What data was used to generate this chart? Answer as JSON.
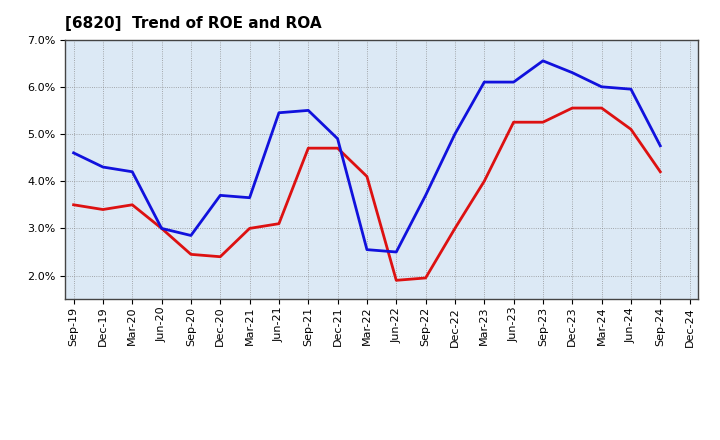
{
  "title": "[6820]  Trend of ROE and ROA",
  "labels": [
    "Sep-19",
    "Dec-19",
    "Mar-20",
    "Jun-20",
    "Sep-20",
    "Dec-20",
    "Mar-21",
    "Jun-21",
    "Sep-21",
    "Dec-21",
    "Mar-22",
    "Jun-22",
    "Sep-22",
    "Dec-22",
    "Mar-23",
    "Jun-23",
    "Sep-23",
    "Dec-23",
    "Mar-24",
    "Jun-24",
    "Sep-24",
    "Dec-24"
  ],
  "ROE": [
    3.5,
    3.4,
    3.5,
    3.0,
    2.45,
    2.4,
    3.0,
    3.1,
    4.7,
    4.7,
    4.1,
    1.9,
    1.95,
    3.0,
    4.0,
    5.25,
    5.25,
    5.55,
    5.55,
    5.1,
    4.2,
    null
  ],
  "ROA": [
    4.6,
    4.3,
    4.2,
    3.0,
    2.85,
    3.7,
    3.65,
    5.45,
    5.5,
    4.9,
    2.55,
    2.5,
    3.7,
    5.0,
    6.1,
    6.1,
    6.55,
    6.3,
    6.0,
    5.95,
    4.75,
    null
  ],
  "roe_color": "#dd1111",
  "roa_color": "#1111dd",
  "ylim": [
    1.5,
    7.0
  ],
  "yticks": [
    2.0,
    3.0,
    4.0,
    5.0,
    6.0,
    7.0
  ],
  "plot_bg_color": "#dce9f5",
  "fig_bg_color": "#ffffff",
  "grid_color": "#888888",
  "title_fontsize": 11,
  "legend_fontsize": 10,
  "tick_fontsize": 8,
  "line_width": 2.0
}
